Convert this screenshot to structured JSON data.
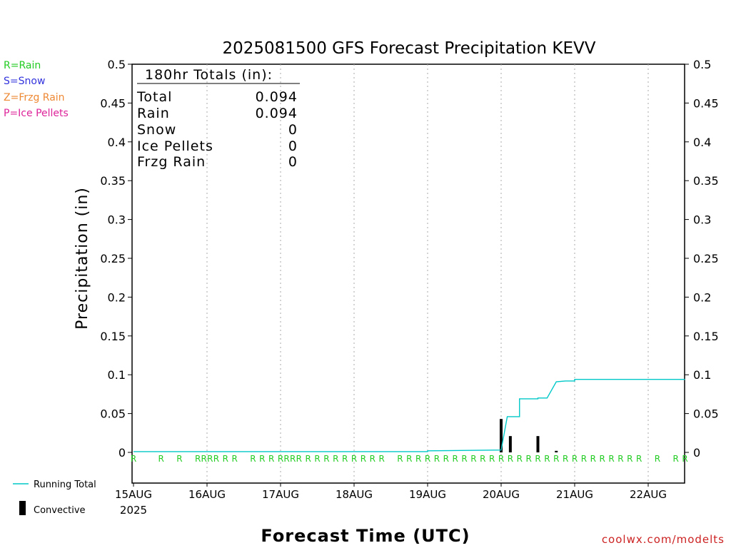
{
  "chart_data": {
    "type": "line",
    "title": "2025081500 GFS Forecast Precipitation KEVV",
    "ylabel": "Precipitation (in)",
    "xlabel": "Forecast Time (UTC)",
    "ylim": [
      0,
      0.5
    ],
    "y_ticks": [
      "0",
      "0.05",
      "0.1",
      "0.15",
      "0.2",
      "0.25",
      "0.3",
      "0.35",
      "0.4",
      "0.45",
      "0.5"
    ],
    "x_tick_labels": [
      "15AUG",
      "16AUG",
      "17AUG",
      "18AUG",
      "19AUG",
      "20AUG",
      "21AUG",
      "22AUG"
    ],
    "x_year_label": "2025",
    "x_range_hours": [
      0,
      180
    ],
    "grid": "vertical dotted",
    "series": [
      {
        "name": "Running Total",
        "color": "#00c8c8",
        "x_hours": [
          0,
          96,
          96,
          120,
          120,
          122,
          123,
          126,
          126,
          129,
          132,
          132,
          135,
          138,
          138,
          141,
          144,
          144,
          147,
          150,
          150,
          153,
          156,
          159,
          162,
          165,
          168,
          171,
          174,
          177,
          180
        ],
        "values": [
          0.001,
          0.001,
          0.002,
          0.003,
          0.003,
          0.046,
          0.046,
          0.046,
          0.069,
          0.069,
          0.069,
          0.07,
          0.07,
          0.091,
          0.091,
          0.092,
          0.092,
          0.094,
          0.094,
          0.094,
          0.094,
          0.094,
          0.094,
          0.094,
          0.094,
          0.094,
          0.094,
          0.094,
          0.094,
          0.094,
          0.094
        ]
      },
      {
        "name": "Convective",
        "type": "bar",
        "color": "#000000",
        "x_hours": [
          120,
          123,
          132,
          138
        ],
        "values": [
          0.043,
          0.021,
          0.021,
          0.002
        ]
      }
    ],
    "precip_type_marks": {
      "symbol": "R",
      "x_hours": [
        0,
        9,
        15,
        21,
        23,
        25,
        27,
        30,
        33,
        39,
        42,
        45,
        48,
        50,
        52,
        54,
        57,
        60,
        63,
        66,
        69,
        72,
        75,
        78,
        81,
        87,
        90,
        93,
        96,
        99,
        102,
        105,
        108,
        111,
        114,
        117,
        120,
        123,
        126,
        129,
        132,
        135,
        138,
        141,
        144,
        147,
        150,
        153,
        156,
        159,
        162,
        165,
        171,
        177,
        180
      ]
    }
  },
  "legend": {
    "types": [
      {
        "label": "R=Rain",
        "color": "#22cc22"
      },
      {
        "label": "S=Snow",
        "color": "#3333dd"
      },
      {
        "label": "Z=Frzg Rain",
        "color": "#ee8833"
      },
      {
        "label": "P=Ice Pellets",
        "color": "#dd2299"
      }
    ],
    "running_total": "Running Total",
    "convective": "Convective"
  },
  "totals": {
    "header": "180hr Totals (in):",
    "rows": [
      {
        "label": "Total",
        "value": "0.094"
      },
      {
        "label": "Rain",
        "value": "0.094"
      },
      {
        "label": "Snow",
        "value": "0"
      },
      {
        "label": "Ice Pellets",
        "value": "0"
      },
      {
        "label": "Frzg Rain",
        "value": "0"
      }
    ]
  },
  "credit": "coolwx.com/modelts"
}
